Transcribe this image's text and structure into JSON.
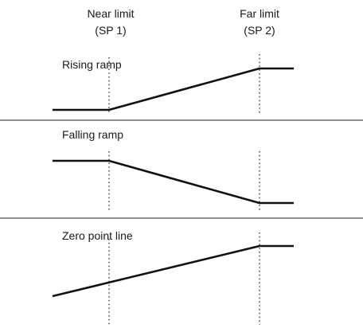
{
  "markers": [
    {
      "line1": "Near limit",
      "line2": "(SP 1)"
    },
    {
      "line1": "Far limit",
      "line2": "(SP 2)"
    }
  ],
  "panels": [
    {
      "label": "Rising ramp"
    },
    {
      "label": "Falling ramp"
    },
    {
      "label": "Zero point line"
    }
  ]
}
